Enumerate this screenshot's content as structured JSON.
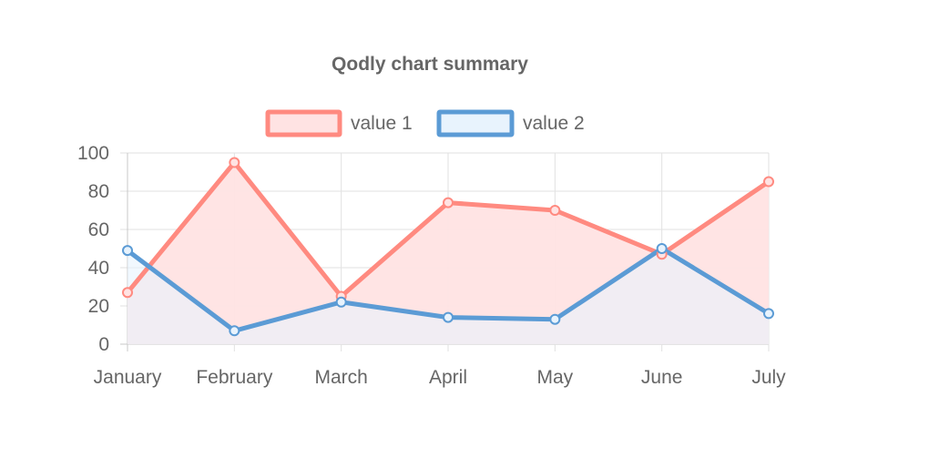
{
  "chart_data": {
    "type": "area",
    "title": "Qodly chart summary",
    "categories": [
      "January",
      "February",
      "March",
      "April",
      "May",
      "June",
      "July"
    ],
    "ylim": [
      0,
      100
    ],
    "yticks": [
      0,
      20,
      40,
      60,
      80,
      100
    ],
    "grid": true,
    "legend_position": "top",
    "series": [
      {
        "name": "value 1",
        "values": [
          27,
          95,
          25,
          74,
          70,
          47,
          85
        ],
        "line_color": "#ff8a80",
        "fill_color": "#ffe3e3"
      },
      {
        "name": "value 2",
        "values": [
          49,
          7,
          22,
          14,
          13,
          50,
          16
        ],
        "line_color": "#5b9bd5",
        "fill_color": "#e8f3fd"
      }
    ]
  }
}
